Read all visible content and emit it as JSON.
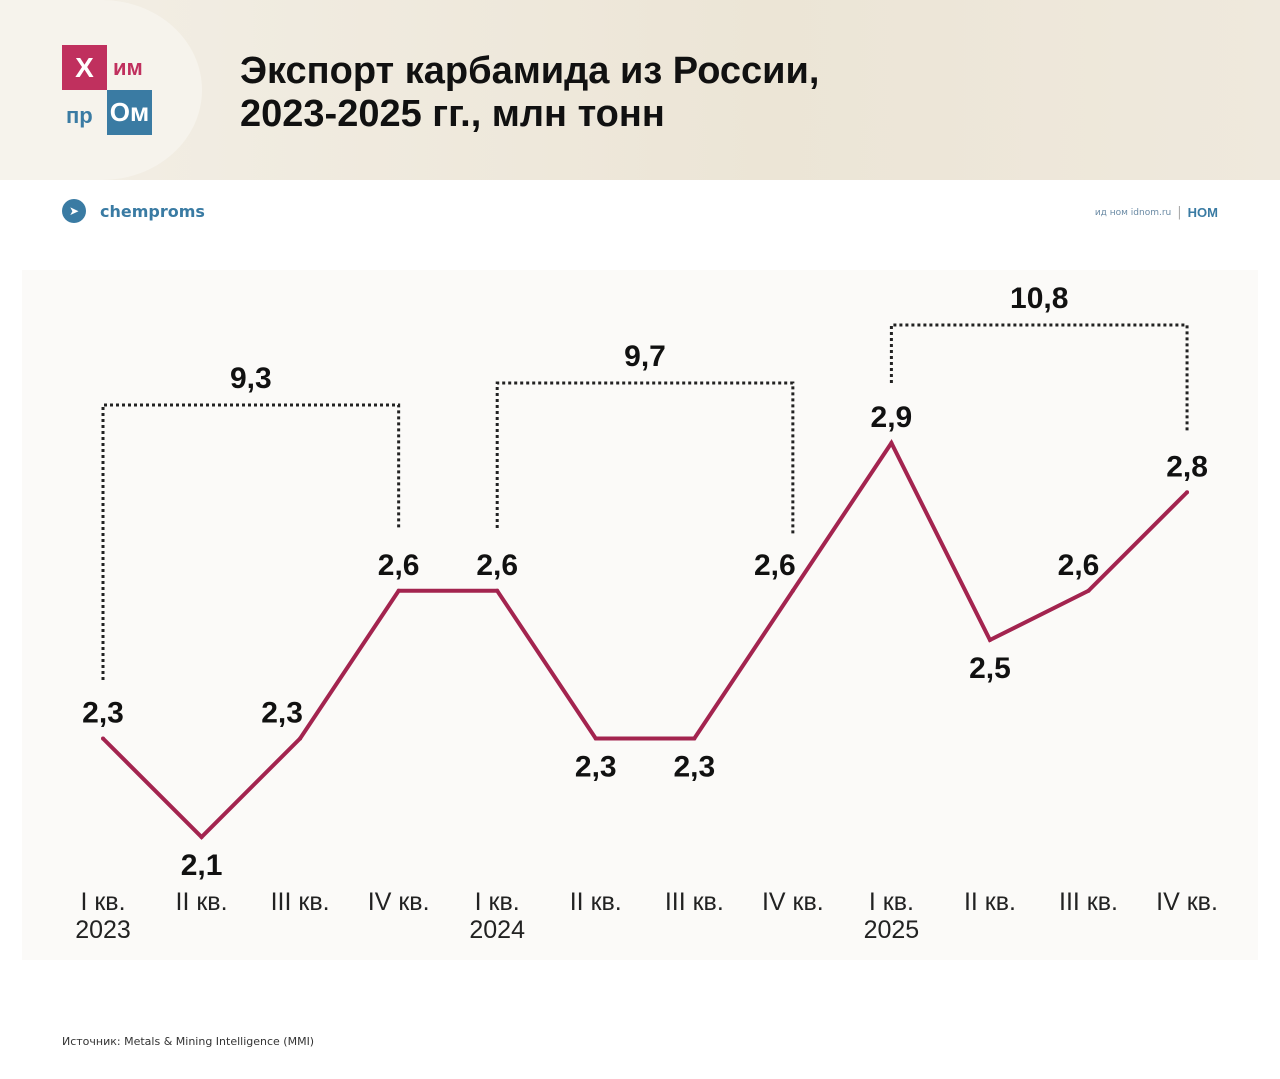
{
  "header": {
    "title_line1": "Экспорт карбамида из России,",
    "title_line2": "2023-2025 гг., млн тонн"
  },
  "logo": {
    "x": "Х",
    "im": "им",
    "pr": "пр",
    "om": "Ом"
  },
  "telegram": {
    "handle": "chemproms",
    "icon": "telegram-icon"
  },
  "publisher": {
    "text": "ид ном idnom.ru",
    "logo": "НОМ"
  },
  "source": "Источник: Metals & Mining Intelligence (MMI)",
  "colors": {
    "line": "#a3244f",
    "brand_red": "#c0305e",
    "brand_blue": "#3a7ba3"
  },
  "chart_data": {
    "type": "line",
    "title": "Экспорт карбамида из России, 2023-2025 гг., млн тонн",
    "categories": [
      [
        "I кв.",
        "2023"
      ],
      [
        "II кв.",
        ""
      ],
      [
        "III кв.",
        ""
      ],
      [
        "IV кв.",
        ""
      ],
      [
        "I кв.",
        "2024"
      ],
      [
        "II кв.",
        ""
      ],
      [
        "III кв.",
        ""
      ],
      [
        "IV кв.",
        ""
      ],
      [
        "I кв.",
        "2025"
      ],
      [
        "II кв.",
        ""
      ],
      [
        "III кв.",
        ""
      ],
      [
        "IV кв.",
        ""
      ]
    ],
    "values": [
      2.3,
      2.1,
      2.3,
      2.6,
      2.6,
      2.3,
      2.3,
      2.6,
      2.9,
      2.5,
      2.6,
      2.8
    ],
    "value_labels": [
      "2,3",
      "2,1",
      "2,3",
      "2,6",
      "2,6",
      "2,3",
      "2,3",
      "2,6",
      "2,9",
      "2,5",
      "2,6",
      "2,8"
    ],
    "annual_totals": [
      {
        "year": "2023",
        "label": "9,3",
        "value": 9.3,
        "from": 0,
        "to": 3
      },
      {
        "year": "2024",
        "label": "9,7",
        "value": 9.7,
        "from": 4,
        "to": 7
      },
      {
        "year": "2025",
        "label": "10,8",
        "value": 10.8,
        "from": 8,
        "to": 11
      }
    ],
    "grid": false
  }
}
